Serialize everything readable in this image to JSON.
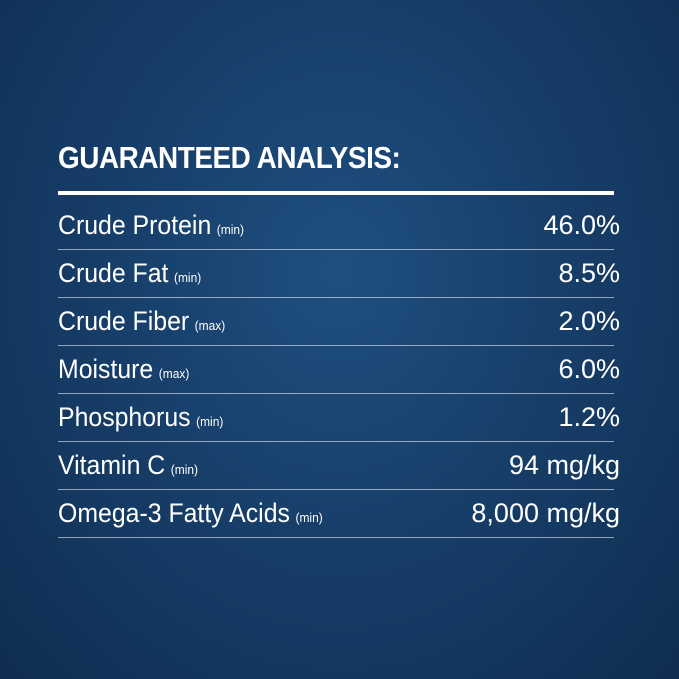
{
  "title": "GUARANTEED ANALYSIS:",
  "rows": [
    {
      "name": "Crude Protein",
      "qualifier": "(min)",
      "value": "46.0%"
    },
    {
      "name": "Crude Fat",
      "qualifier": "(min)",
      "value": "8.5%"
    },
    {
      "name": "Crude Fiber",
      "qualifier": "(max)",
      "value": "2.0%"
    },
    {
      "name": "Moisture",
      "qualifier": "(max)",
      "value": "6.0%"
    },
    {
      "name": "Phosphorus",
      "qualifier": "(min)",
      "value": "1.2%"
    },
    {
      "name": "Vitamin C",
      "qualifier": "(min)",
      "value": "94 mg/kg"
    },
    {
      "name": "Omega-3 Fatty Acids",
      "qualifier": "(min)",
      "value": "8,000 mg/kg"
    }
  ]
}
